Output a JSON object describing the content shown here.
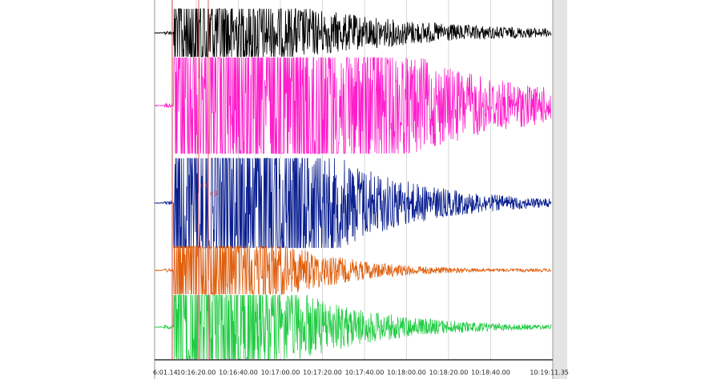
{
  "axis": {
    "start_label": "6:01.14",
    "tick_labels": [
      "10:16:20.00",
      "10:16:40.00",
      "10:17:00.00",
      "10:17:20.00",
      "10:17:40.00",
      "10:18:00.00",
      "10:18:20.00",
      "10:18:40.00"
    ],
    "end_label": "10:19:11.35"
  },
  "markers": [
    "c1",
    "c3"
  ]
}
